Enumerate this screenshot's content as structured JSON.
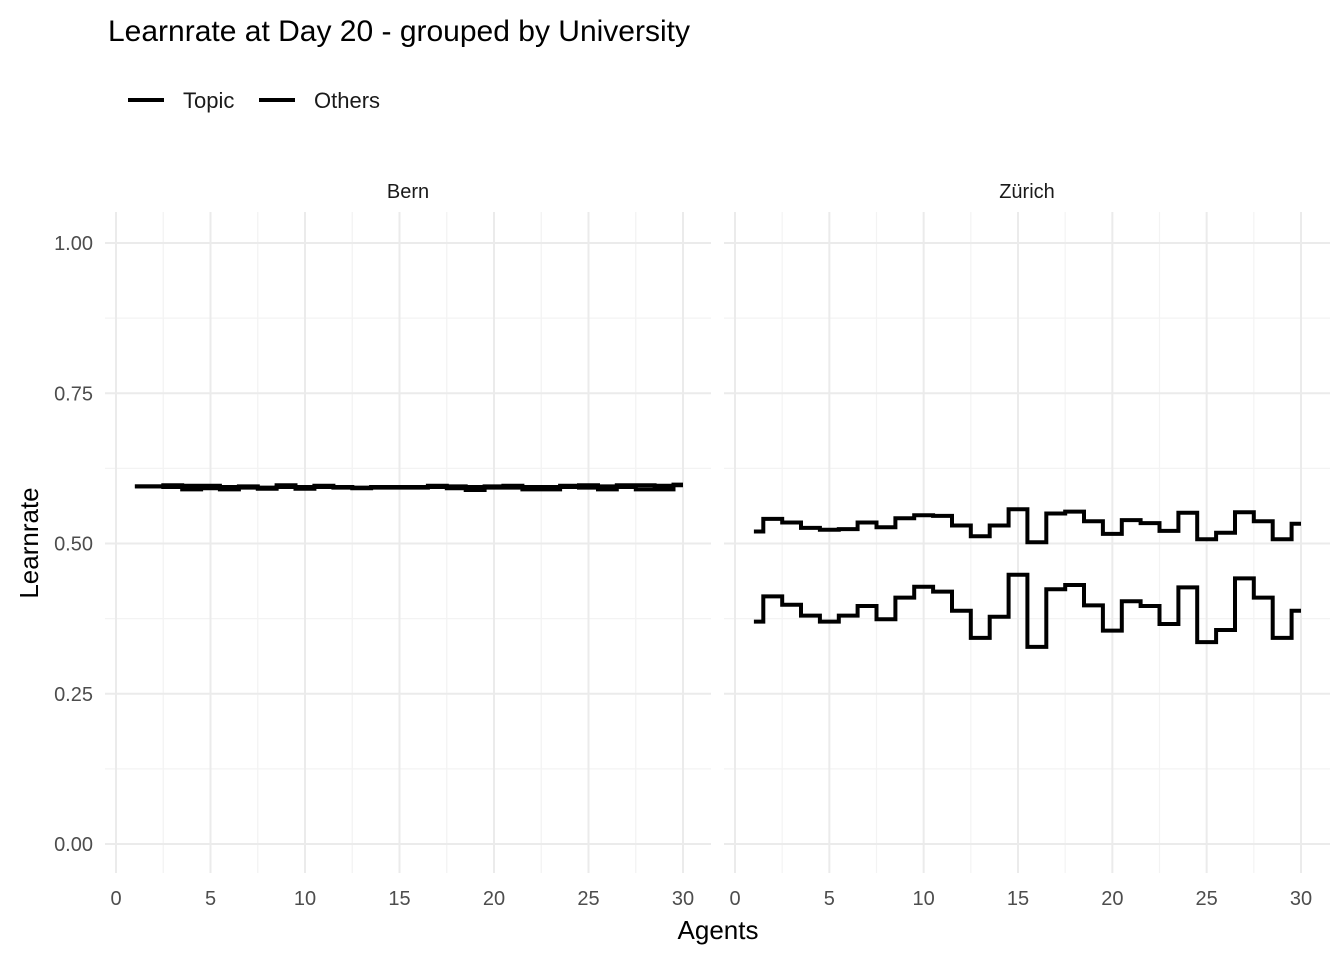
{
  "chart_data": {
    "type": "line",
    "title": "Learnrate at Day 20 - grouped by University",
    "xlabel": "Agents",
    "ylabel": "Learnrate",
    "legend": {
      "position": "top-left",
      "entries": [
        "Topic",
        "Others"
      ]
    },
    "grid": true,
    "xlim": [
      0,
      30
    ],
    "ylim": [
      0,
      1
    ],
    "x_ticks": [
      "0",
      "5",
      "10",
      "15",
      "20",
      "25",
      "30"
    ],
    "y_ticks": [
      "0.00",
      "0.25",
      "0.50",
      "0.75",
      "1.00"
    ],
    "panels": [
      {
        "name": "Bern",
        "x": [
          1,
          2,
          3,
          4,
          5,
          6,
          7,
          8,
          9,
          10,
          11,
          12,
          13,
          14,
          15,
          16,
          17,
          18,
          19,
          20,
          21,
          22,
          23,
          24,
          25,
          26,
          27,
          28,
          29,
          30
        ],
        "series": [
          {
            "name": "Topic",
            "values": [
              0.595,
              0.595,
              0.597,
              0.596,
              0.596,
              0.594,
              0.595,
              0.593,
              0.597,
              0.594,
              0.596,
              0.594,
              0.593,
              0.594,
              0.594,
              0.594,
              0.596,
              0.595,
              0.594,
              0.595,
              0.596,
              0.594,
              0.594,
              0.596,
              0.597,
              0.595,
              0.597,
              0.597,
              0.596,
              0.598
            ]
          },
          {
            "name": "Others",
            "values": [
              0.595,
              0.595,
              0.594,
              0.59,
              0.592,
              0.59,
              0.593,
              0.591,
              0.594,
              0.591,
              0.594,
              0.593,
              0.592,
              0.593,
              0.593,
              0.593,
              0.594,
              0.592,
              0.589,
              0.593,
              0.593,
              0.59,
              0.59,
              0.594,
              0.593,
              0.59,
              0.594,
              0.59,
              0.59,
              0.597
            ]
          }
        ]
      },
      {
        "name": "Zürich",
        "x": [
          1,
          2,
          3,
          4,
          5,
          6,
          7,
          8,
          9,
          10,
          11,
          12,
          13,
          14,
          15,
          16,
          17,
          18,
          19,
          20,
          21,
          22,
          23,
          24,
          25,
          26,
          27,
          28,
          29,
          30
        ],
        "series": [
          {
            "name": "Topic",
            "values": [
              0.52,
              0.541,
              0.535,
              0.526,
              0.523,
              0.524,
              0.535,
              0.527,
              0.542,
              0.547,
              0.546,
              0.53,
              0.512,
              0.53,
              0.557,
              0.502,
              0.55,
              0.553,
              0.537,
              0.516,
              0.539,
              0.534,
              0.521,
              0.551,
              0.507,
              0.518,
              0.552,
              0.537,
              0.507,
              0.533
            ]
          },
          {
            "name": "Others",
            "values": [
              0.37,
              0.412,
              0.398,
              0.38,
              0.37,
              0.38,
              0.396,
              0.374,
              0.41,
              0.428,
              0.42,
              0.388,
              0.343,
              0.378,
              0.448,
              0.328,
              0.424,
              0.431,
              0.397,
              0.355,
              0.404,
              0.396,
              0.366,
              0.427,
              0.336,
              0.356,
              0.442,
              0.41,
              0.343,
              0.388
            ]
          }
        ]
      }
    ]
  }
}
